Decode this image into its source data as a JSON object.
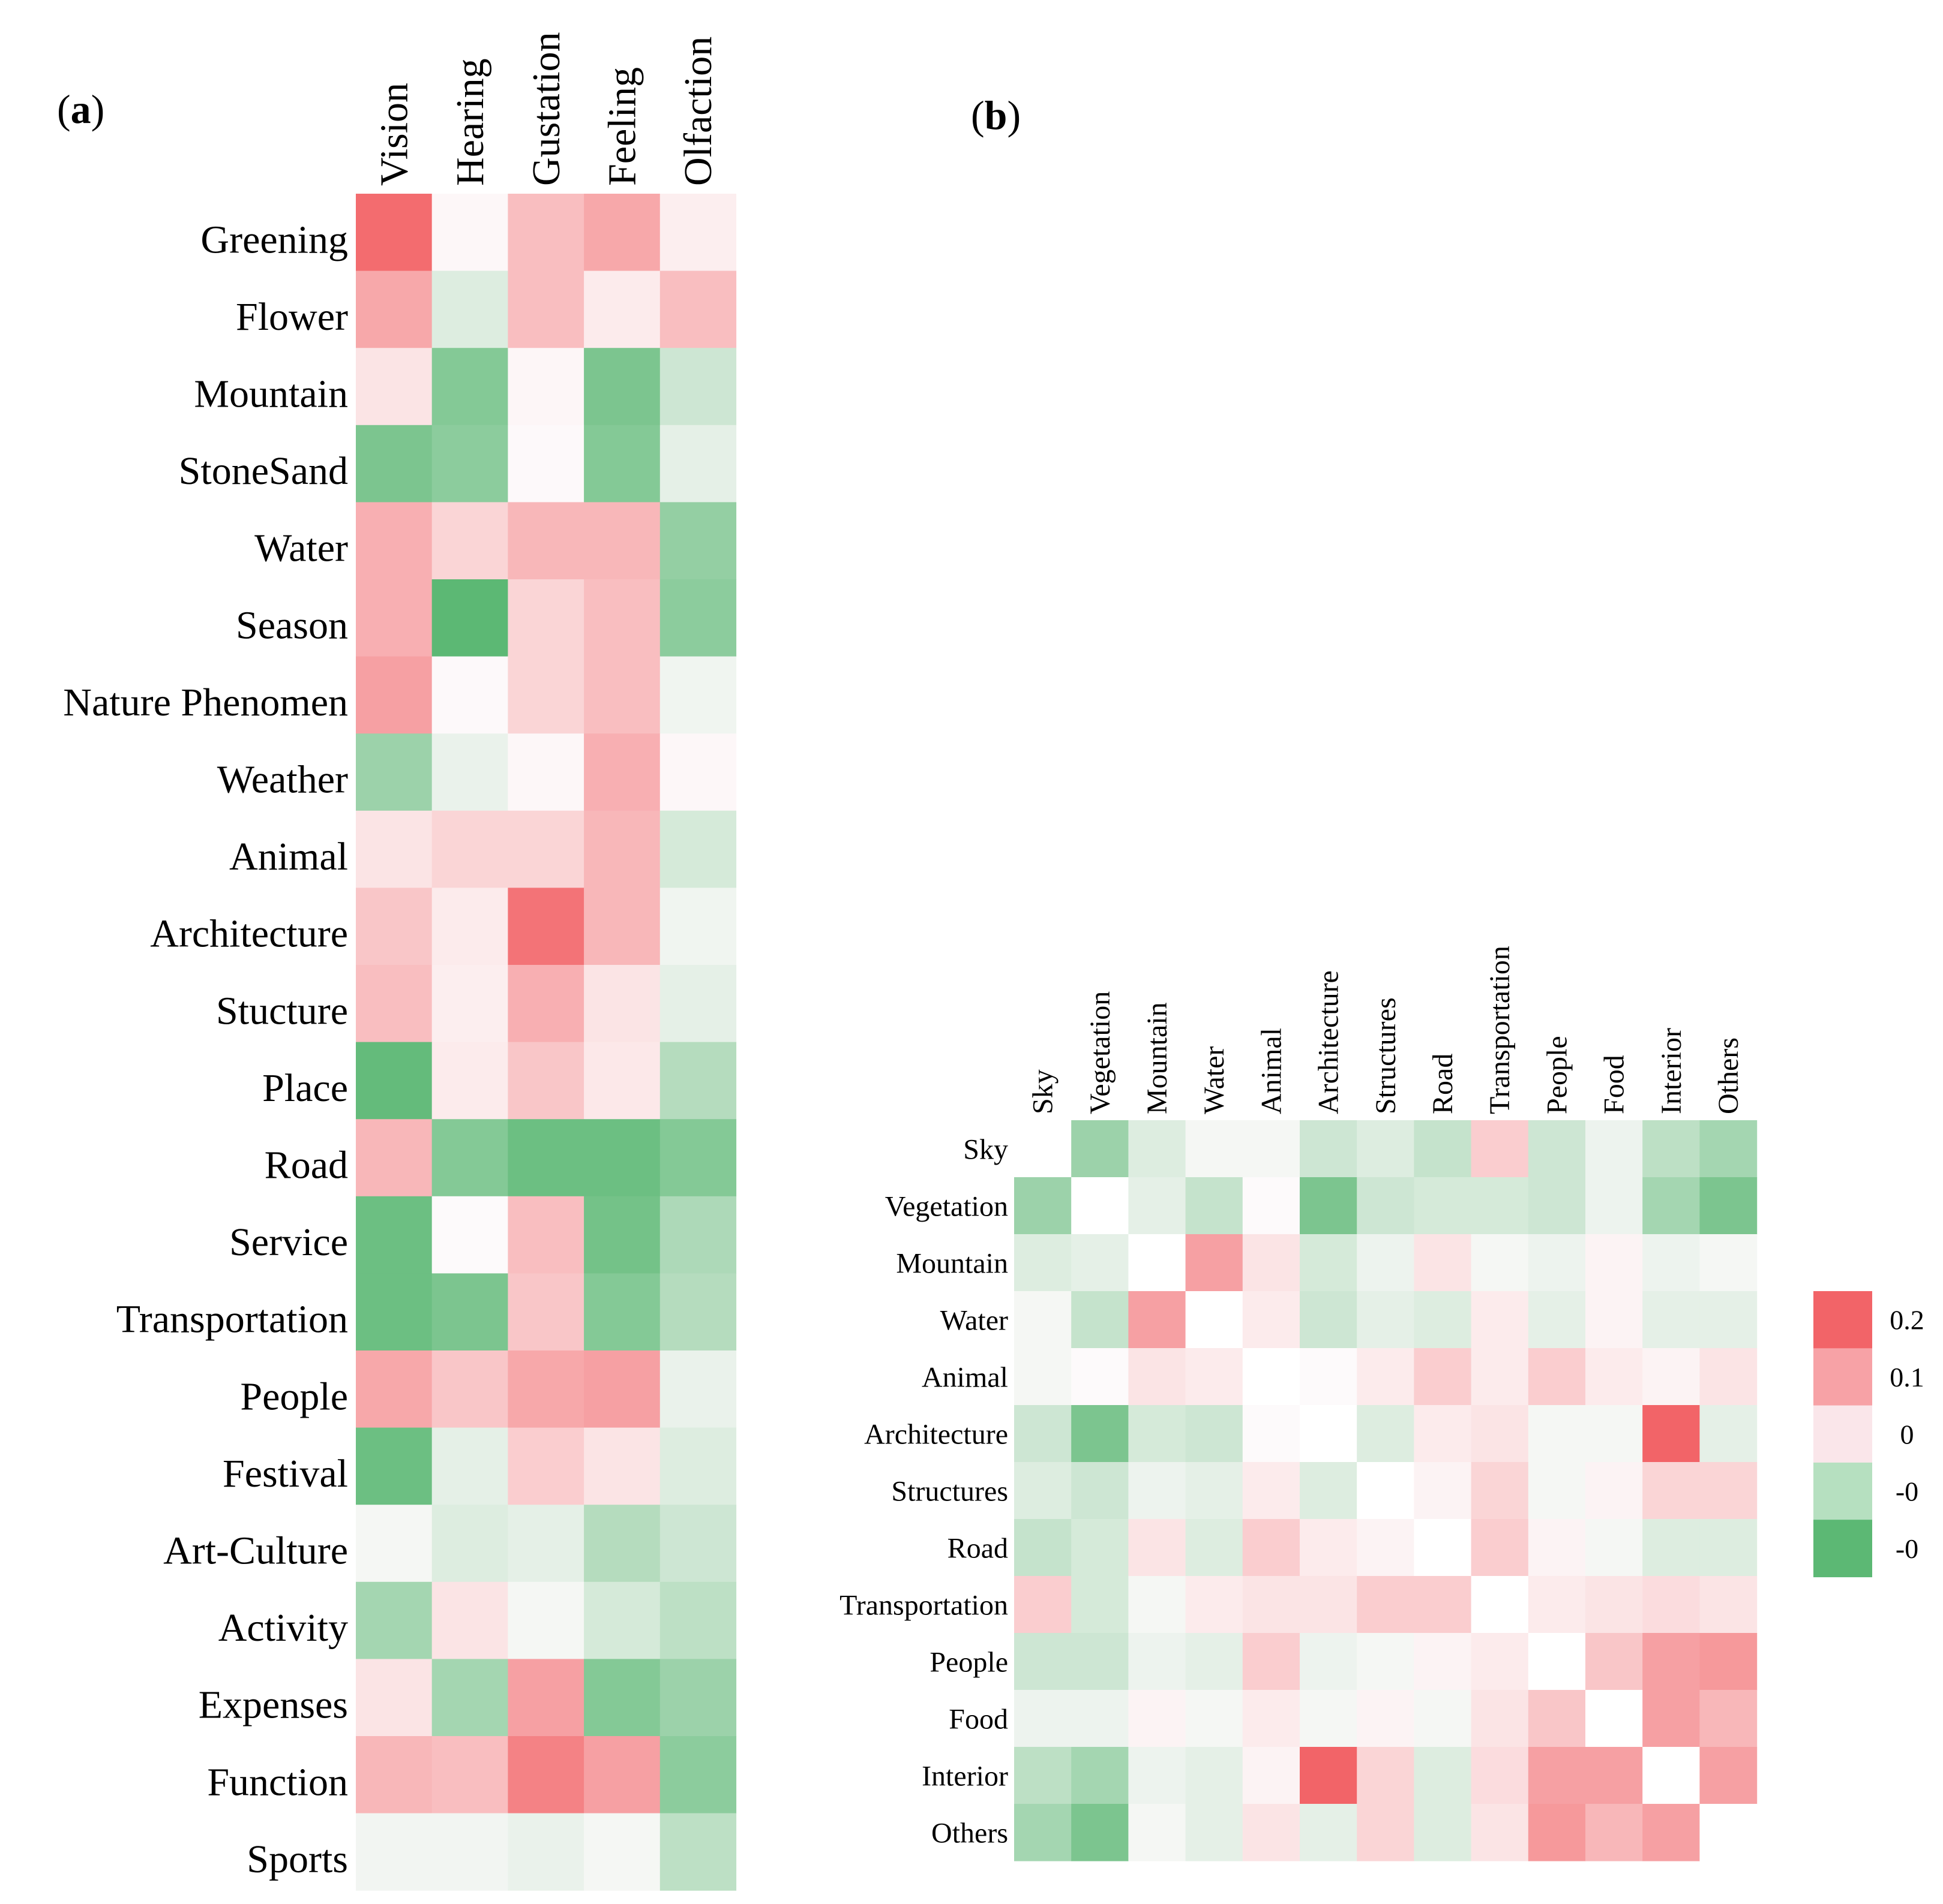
{
  "chart_data": [
    {
      "type": "heatmap",
      "panel": "(a)",
      "panel_letter": "a",
      "columns": [
        "Vision",
        "Hearing",
        "Gustation",
        "Feeling",
        "Olfaction"
      ],
      "rows": [
        "Greening",
        "Flower",
        "Mountain",
        "StoneSand",
        "Water",
        "Season",
        "Nature Phenomen",
        "Weather",
        "Animal",
        "Architecture",
        "Stucture",
        "Place",
        "Road",
        "Service",
        "Transportation",
        "People",
        "Festival",
        "Art-Culture",
        "Activity",
        "Expenses",
        "Function",
        "Sports"
      ],
      "values": [
        [
          0.95,
          0.02,
          0.4,
          0.55,
          0.08
        ],
        [
          0.55,
          -0.2,
          0.4,
          0.1,
          0.4
        ],
        [
          0.15,
          -0.75,
          0.03,
          -0.8,
          -0.3
        ],
        [
          -0.8,
          -0.7,
          0.01,
          -0.75,
          -0.15
        ],
        [
          0.5,
          0.25,
          0.45,
          0.45,
          -0.65
        ],
        [
          0.5,
          -1.0,
          0.25,
          0.4,
          -0.7
        ],
        [
          0.6,
          0.01,
          0.25,
          0.4,
          -0.08
        ],
        [
          -0.6,
          -0.12,
          0.02,
          0.5,
          0.02
        ],
        [
          0.15,
          0.25,
          0.25,
          0.45,
          -0.25
        ],
        [
          0.35,
          0.1,
          0.9,
          0.45,
          -0.08
        ],
        [
          0.4,
          0.08,
          0.5,
          0.15,
          -0.15
        ],
        [
          -0.95,
          0.1,
          0.35,
          0.12,
          -0.45
        ],
        [
          0.45,
          -0.75,
          -0.9,
          -0.9,
          -0.75
        ],
        [
          -0.9,
          0.0,
          0.4,
          -0.85,
          -0.5
        ],
        [
          -0.9,
          -0.8,
          0.35,
          -0.75,
          -0.45
        ],
        [
          0.55,
          0.35,
          0.55,
          0.6,
          -0.12
        ],
        [
          -0.9,
          -0.15,
          0.3,
          0.15,
          -0.2
        ],
        [
          -0.05,
          -0.2,
          -0.15,
          -0.45,
          -0.3
        ],
        [
          -0.55,
          0.15,
          -0.05,
          -0.25,
          -0.4
        ],
        [
          0.15,
          -0.55,
          0.6,
          -0.75,
          -0.6
        ],
        [
          0.45,
          0.4,
          0.8,
          0.6,
          -0.7
        ],
        [
          -0.07,
          -0.07,
          -0.12,
          -0.05,
          -0.4
        ]
      ]
    },
    {
      "type": "heatmap",
      "panel": "(b)",
      "panel_letter": "b",
      "columns": [
        "Sky",
        "Vegetation",
        "Mountain",
        "Water",
        "Animal",
        "Architecture",
        "Structures",
        "Road",
        "Transportation",
        "People",
        "Food",
        "Interior",
        "Others"
      ],
      "rows": [
        "Sky",
        "Vegetation",
        "Mountain",
        "Water",
        "Animal",
        "Architecture",
        "Structures",
        "Road",
        "Transportation",
        "People",
        "Food",
        "Interior",
        "Others"
      ],
      "values": [
        [
          null,
          -0.12,
          -0.04,
          -0.01,
          -0.01,
          -0.06,
          -0.04,
          -0.07,
          0.06,
          -0.06,
          -0.02,
          -0.08,
          -0.11
        ],
        [
          -0.12,
          null,
          -0.03,
          -0.07,
          0.0,
          -0.16,
          -0.06,
          -0.05,
          -0.05,
          -0.06,
          -0.02,
          -0.11,
          -0.16
        ],
        [
          -0.04,
          -0.03,
          null,
          0.12,
          0.03,
          -0.05,
          -0.02,
          0.03,
          -0.01,
          -0.02,
          0.01,
          -0.02,
          -0.01
        ],
        [
          -0.01,
          -0.07,
          0.12,
          null,
          0.02,
          -0.06,
          -0.03,
          -0.04,
          0.02,
          -0.03,
          0.01,
          -0.03,
          -0.03
        ],
        [
          -0.01,
          0.0,
          0.03,
          0.02,
          null,
          0.0,
          0.02,
          0.06,
          0.02,
          0.06,
          0.02,
          0.01,
          0.03
        ],
        [
          -0.06,
          -0.16,
          -0.05,
          -0.06,
          0.0,
          null,
          -0.04,
          0.02,
          0.03,
          -0.01,
          -0.01,
          0.2,
          -0.03
        ],
        [
          -0.04,
          -0.06,
          -0.02,
          -0.03,
          0.02,
          -0.04,
          null,
          0.01,
          0.05,
          -0.01,
          0.01,
          0.05,
          0.05
        ],
        [
          -0.07,
          -0.05,
          0.03,
          -0.04,
          0.06,
          0.02,
          0.01,
          null,
          0.06,
          0.01,
          -0.01,
          -0.04,
          -0.04
        ],
        [
          0.06,
          -0.05,
          -0.01,
          0.02,
          0.03,
          0.03,
          0.06,
          0.06,
          null,
          0.02,
          0.03,
          0.04,
          0.03
        ],
        [
          -0.06,
          -0.06,
          -0.02,
          -0.03,
          0.06,
          -0.02,
          -0.01,
          0.01,
          0.02,
          null,
          0.07,
          0.12,
          0.13
        ],
        [
          -0.02,
          -0.02,
          0.01,
          -0.01,
          0.02,
          -0.01,
          0.01,
          -0.01,
          0.03,
          0.07,
          null,
          0.12,
          0.09
        ],
        [
          -0.08,
          -0.11,
          -0.02,
          -0.03,
          0.01,
          0.2,
          0.05,
          -0.04,
          0.04,
          0.12,
          0.12,
          null,
          0.12
        ],
        [
          -0.11,
          -0.16,
          -0.01,
          -0.03,
          0.03,
          -0.03,
          0.05,
          -0.04,
          0.03,
          0.13,
          0.09,
          0.12,
          null
        ]
      ],
      "colorbar": {
        "tick_labels": [
          "0.2",
          "0.1",
          "0",
          "-0",
          "-0"
        ],
        "colors": [
          "#f26468",
          "#f7a2a6",
          "#fae6ea",
          "#b6e0c0",
          "#5cb874"
        ]
      }
    }
  ]
}
